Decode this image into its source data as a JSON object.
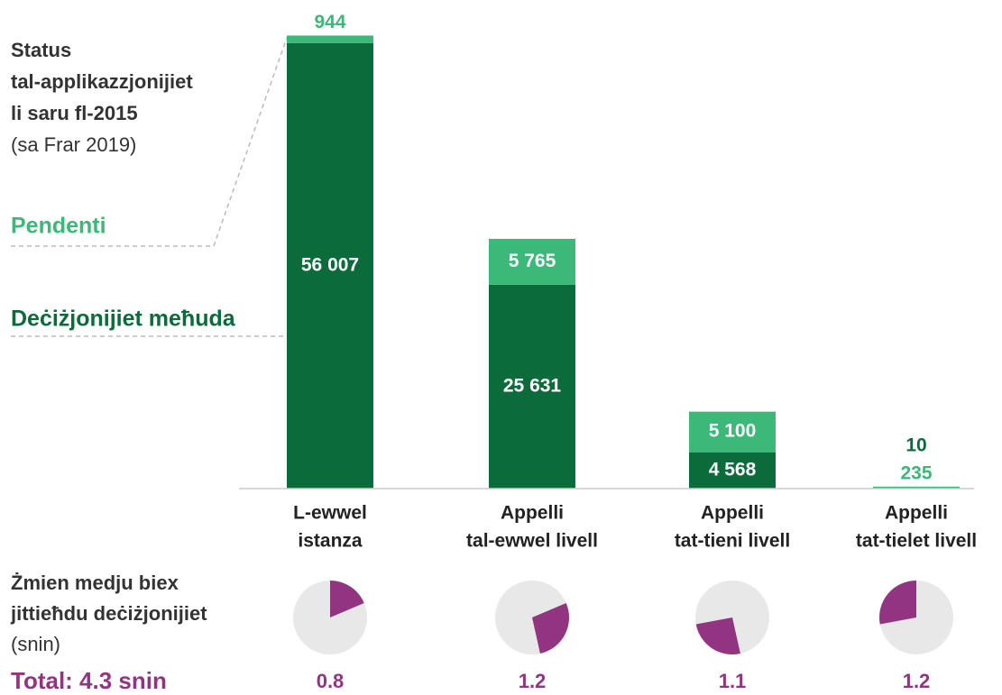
{
  "chart_data": [
    {
      "type": "bar",
      "stacked": true,
      "title": [
        "Status",
        "tal-applikazzjonijiet",
        "li saru fl-2015"
      ],
      "subtitle": "(sa Frar 2019)",
      "categories": [
        [
          "L-ewwel",
          "istanza"
        ],
        [
          "Appelli",
          "tal-ewwel livell"
        ],
        [
          "Appelli",
          "tat-tieni livell"
        ],
        [
          "Appelli",
          "tat-tielet livell"
        ]
      ],
      "series": [
        {
          "name": "Deċiżjonijiet meħuda",
          "color": "#0b6b3a",
          "values": [
            56007,
            25631,
            4568,
            10
          ],
          "value_labels": [
            "56 007",
            "25 631",
            "4 568",
            "10"
          ]
        },
        {
          "name": "Pendenti",
          "color": "#3cb878",
          "values": [
            944,
            5765,
            5100,
            235
          ],
          "value_labels": [
            "944",
            "5 765",
            "5 100",
            "235"
          ]
        }
      ],
      "ylim": [
        0,
        57000
      ]
    },
    {
      "type": "pie",
      "title": [
        "Żmien medju biex",
        "jittieħdu deċiżjonijiet"
      ],
      "subtitle": "(snin)",
      "values": [
        0.8,
        1.2,
        1.1,
        1.2
      ],
      "color": "#923581",
      "background": "#e8e8e8",
      "total": {
        "value": 4.3,
        "label": "Total: 4.3 snin"
      }
    }
  ]
}
